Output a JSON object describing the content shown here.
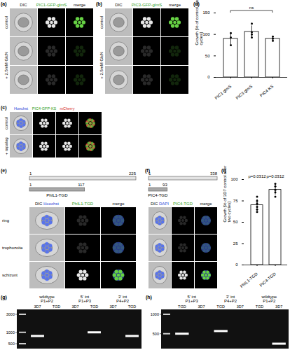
{
  "chart_data": [
    {
      "panel": "(d)",
      "type": "bar",
      "ylabel": "Growth [% of control after two cycles]",
      "categories": [
        "PIC1 glmS",
        "PIC3 glmS",
        "PIC4 KS"
      ],
      "values": [
        90,
        106,
        90
      ],
      "errors": [
        14,
        14,
        5
      ],
      "points": [
        [
          103,
          93,
          75
        ],
        [
          125,
          100,
          93,
          105
        ],
        [
          95,
          85,
          90
        ]
      ],
      "ylim": [
        0,
        150
      ],
      "yticks": [
        0,
        50,
        100,
        150
      ],
      "annotations": [
        "ns"
      ],
      "color": "#ffffff"
    },
    {
      "panel": "(i)",
      "type": "bar",
      "ylabel": "Growth [% of 3D7 control after two cycles]",
      "categories": [
        "PhIL1-TGD",
        "PIC4-TGD"
      ],
      "values": [
        70,
        88
      ],
      "errors": [
        7,
        6
      ],
      "points": [
        [
          80,
          75,
          68,
          62,
          72,
          65
        ],
        [
          95,
          92,
          85,
          80,
          88
        ]
      ],
      "ylim": [
        0,
        100
      ],
      "yticks": [
        0,
        25,
        50,
        75,
        100
      ],
      "annotations": [
        "p=0.0312",
        "p=0.0312"
      ],
      "color": "#ffffff"
    }
  ],
  "figure": {
    "a": {
      "label": "(a)",
      "columns": [
        "DIC",
        "PIC1-GFP-glmS",
        "merge"
      ],
      "rows": [
        "control",
        "+ 2.5mM GlcN"
      ]
    },
    "b": {
      "label": "(b)",
      "columns": [
        "DIC",
        "PIC3-GFP-glmS",
        "merge"
      ],
      "rows": [
        "control",
        "+ 2.5mM GlcN"
      ]
    },
    "c": {
      "label": "(c)",
      "columns": [
        "Hoechst",
        "PIC4-GFP-KS",
        "mCherry"
      ],
      "rows": [
        "control",
        "+ rapalog"
      ]
    },
    "e": {
      "label": "(e)",
      "start": 1,
      "full_length": 225,
      "truncated_length": 117,
      "construct": "PhIL1-TGD",
      "columns": [
        "DIC",
        "Hoechst",
        "PhIL1-TGD",
        "merge"
      ],
      "rows": [
        "ring",
        "trophozoite",
        "schizont"
      ]
    },
    "f": {
      "label": "(f)",
      "start": 1,
      "full_length": 338,
      "truncated_length": 93,
      "construct": "PIC4-TGD",
      "columns": [
        "DIC",
        "DAPI",
        "PIC4-TGD",
        "merge"
      ]
    },
    "g": {
      "label": "(g)",
      "ladder": [
        3000,
        1000,
        500
      ],
      "lanes": [
        {
          "name": "wildtype",
          "primers": "P1+P2",
          "samples": [
            "3D7",
            "TGD"
          ],
          "bands": [
            800,
            null
          ]
        },
        {
          "name": "5' int",
          "primers": "P1+P3",
          "samples": [
            "3D7",
            "TGD"
          ],
          "bands": [
            null,
            1000
          ]
        },
        {
          "name": "3' int",
          "primers": "P4+P2",
          "samples": [
            "3D7",
            "TGD"
          ],
          "bands": [
            null,
            800
          ]
        }
      ]
    },
    "h": {
      "label": "(h)",
      "ladder": [
        1000,
        500
      ],
      "lanes": [
        {
          "name": "5' int",
          "primers": "P1+P3",
          "samples": [
            "TGD",
            "3D7"
          ],
          "bands": [
            500,
            null
          ]
        },
        {
          "name": "3' int",
          "primers": "P4+P2",
          "samples": [
            "TGD",
            "3D7"
          ],
          "bands": [
            550,
            null
          ]
        },
        {
          "name": "wildtype",
          "primers": "P1+P2",
          "samples": [
            "TGD",
            "3D7"
          ],
          "bands": [
            null,
            350
          ]
        }
      ]
    }
  }
}
